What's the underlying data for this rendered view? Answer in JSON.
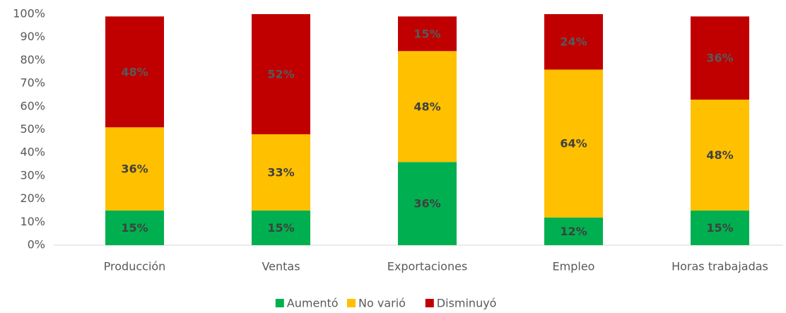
{
  "chart_data": {
    "type": "stacked_bar",
    "categories": [
      "Producción",
      "Ventas",
      "Exportaciones",
      "Empleo",
      "Horas trabajadas"
    ],
    "series": [
      {
        "name": "Aumentó",
        "color": "#00b050",
        "values": [
          15,
          15,
          36,
          12,
          15
        ],
        "value_labels": [
          "15%",
          "15%",
          "36%",
          "12%",
          "15%"
        ]
      },
      {
        "name": "No varió",
        "color": "#ffc000",
        "values": [
          36,
          33,
          48,
          64,
          48
        ],
        "value_labels": [
          "36%",
          "33%",
          "48%",
          "64%",
          "48%"
        ]
      },
      {
        "name": "Disminuyó",
        "color": "#c00000",
        "values": [
          48,
          52,
          15,
          24,
          36
        ],
        "value_labels": [
          "48%",
          "52%",
          "15%",
          "24%",
          "36%"
        ]
      }
    ],
    "ylim": [
      0,
      100
    ],
    "yticks": [
      {
        "value": 0,
        "label": "0%"
      },
      {
        "value": 10,
        "label": "10%"
      },
      {
        "value": 20,
        "label": "20%"
      },
      {
        "value": 30,
        "label": "30%"
      },
      {
        "value": 40,
        "label": "40%"
      },
      {
        "value": 50,
        "label": "50%"
      },
      {
        "value": 60,
        "label": "60%"
      },
      {
        "value": 70,
        "label": "70%"
      },
      {
        "value": 80,
        "label": "80%"
      },
      {
        "value": 90,
        "label": "90%"
      },
      {
        "value": 100,
        "label": "100%"
      }
    ],
    "grid": false,
    "legend": "bottom"
  }
}
